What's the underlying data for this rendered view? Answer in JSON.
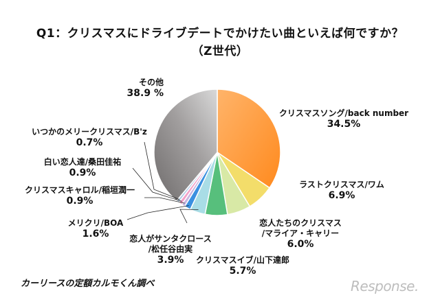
{
  "header": {
    "title": "Q1：クリスマスにドライブデートでかけたい曲といえば何ですか？",
    "subtitle": "（Z世代）"
  },
  "source": "カーリースの定額カルモくん調べ",
  "logo": "Response.",
  "chart_data": {
    "type": "pie",
    "title": "Q1：クリスマスにドライブデートでかけたい曲といえば何ですか？",
    "subtitle": "（Z世代）",
    "start": "12 o'clock, clockwise",
    "slices": [
      {
        "label": "クリスマスソング/back number",
        "value": 34.5,
        "value_text": "34.5%",
        "color": "#ff9a3c"
      },
      {
        "label": "ラストクリスマス/ワム",
        "value": 6.9,
        "value_text": "6.9%",
        "color": "#f3dd6a"
      },
      {
        "label": "恋人たちのクリスマス/マライア・キャリー",
        "label_lines": [
          "恋人たちのクリスマス",
          "/マライア・キャリー"
        ],
        "value": 6.0,
        "value_text": "6.0%",
        "color": "#d8e9a6"
      },
      {
        "label": "クリスマスイブ/山下達郎",
        "value": 5.7,
        "value_text": "5.7%",
        "color": "#57bf7c"
      },
      {
        "label": "恋人がサンタクロース/松任谷由実",
        "label_lines": [
          "恋人がサンタクロース",
          "/松任谷由実"
        ],
        "value": 3.9,
        "value_text": "3.9%",
        "color": "#a9dde6"
      },
      {
        "label": "メリクリ/BOA",
        "value": 1.6,
        "value_text": "1.6%",
        "color": "#3a90e0"
      },
      {
        "label": "クリスマスキャロル/稲垣潤一",
        "value": 0.9,
        "value_text": "0.9%",
        "color": "#c9b4e0"
      },
      {
        "label": "白い恋人達/桑田佳祐",
        "value": 0.9,
        "value_text": "0.9%",
        "color": "#f3a0c8"
      },
      {
        "label": "いつかのメリークリスマス/B'z",
        "value": 0.7,
        "value_text": "0.7%",
        "color": "#b4cde6"
      },
      {
        "label": "その他",
        "value": 38.9,
        "value_text": "38.9 %",
        "color": "#8d8a8a"
      }
    ]
  }
}
